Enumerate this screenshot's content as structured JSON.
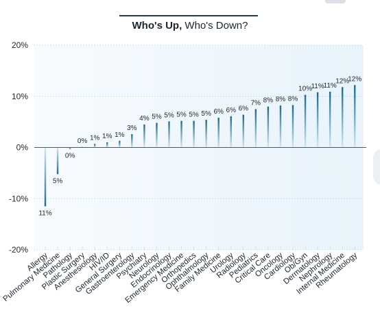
{
  "title": {
    "bold": "Who's Up,",
    "rest": " Who's Down?"
  },
  "colors": {
    "bar": "#1a6a8c",
    "bar_fade": "#cfe9f6",
    "plot_bg": "#e8f3fb",
    "zero_line": "#555555",
    "accent_rule": "#1d3b4f"
  },
  "chart_data": {
    "type": "bar",
    "title": "Who's Up, Who's Down?",
    "xlabel": "",
    "ylabel": "",
    "ylim": [
      -20,
      20
    ],
    "yticks": [
      20,
      10,
      0,
      -10,
      -20
    ],
    "ytick_labels": [
      "20%",
      "10%",
      "0%",
      "-10%",
      "-20%"
    ],
    "grid": "dotted",
    "categories": [
      "Allergy",
      "Pulmonary Medicine",
      "Pathology",
      "Plastic Surgery",
      "Anesthesiology",
      "HIV/ID",
      "General Surgery",
      "Gastroenterology",
      "Psychiatry",
      "Neurology",
      "Endocrinology",
      "Emergency Medicine",
      "Orthopedics",
      "Ophthalmology",
      "Family Medicine",
      "Urology",
      "Radiology",
      "Pediatrics",
      "Critical Care",
      "Oncology",
      "Cardiology",
      "Ob/Gyn",
      "Dermatology",
      "Nephrology",
      "Internal Medicine",
      "Rheumatology"
    ],
    "values": [
      -11.5,
      -5.2,
      -0.3,
      0.1,
      0.7,
      1.0,
      1.3,
      2.6,
      4.5,
      4.8,
      5.1,
      5.2,
      5.2,
      5.4,
      5.8,
      6.1,
      6.4,
      7.5,
      8.0,
      8.2,
      8.3,
      10.3,
      10.8,
      10.9,
      11.8,
      12.2
    ],
    "labels": [
      "11%",
      "5%",
      "0%",
      "0%",
      "1%",
      "1%",
      "1%",
      "3%",
      "4%",
      "5%",
      "5%",
      "5%",
      "5%",
      "5%",
      "6%",
      "6%",
      "6%",
      "7%",
      "8%",
      "8%",
      "8%",
      "10%",
      "11%",
      "11%",
      "12%",
      "12%"
    ]
  }
}
